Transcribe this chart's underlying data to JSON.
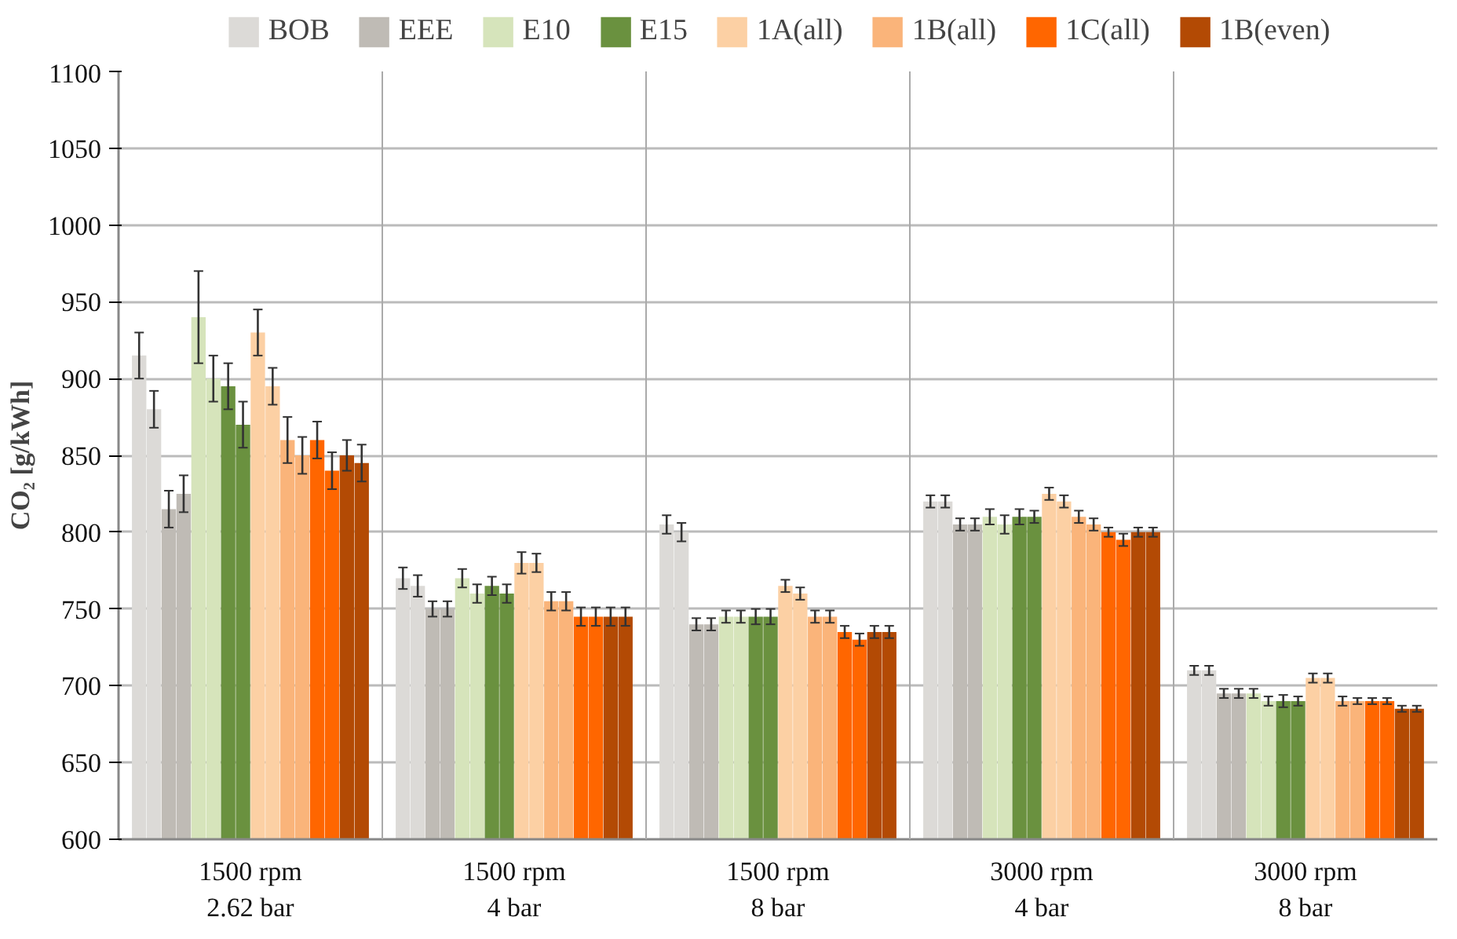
{
  "chart_data": {
    "type": "bar",
    "ylabel": "CO₂ [g/kWh]",
    "categories": [
      "1500 rpm\n2.62 bar",
      "1500 rpm\n4 bar",
      "1500 rpm\n8 bar",
      "3000 rpm\n4 bar",
      "3000 rpm\n8 bar"
    ],
    "ylim": [
      600,
      1100
    ],
    "yticks": [
      600,
      650,
      700,
      750,
      800,
      850,
      900,
      950,
      1000,
      1050,
      1100
    ],
    "grid": "y",
    "legend": "top",
    "series": [
      {
        "name": "BOB",
        "color": "#dcdad7",
        "values": [
          915,
          770,
          805,
          820,
          710
        ],
        "errors": [
          15,
          7,
          6,
          4,
          3
        ]
      },
      {
        "color": "#dcdad7",
        "values": [
          880,
          765,
          800,
          820,
          710
        ],
        "errors": [
          12,
          7,
          6,
          4,
          3
        ]
      },
      {
        "name": "EEE",
        "color": "#bfbbb5",
        "values": [
          815,
          750,
          740,
          805,
          695
        ],
        "errors": [
          12,
          5,
          4,
          4,
          3
        ]
      },
      {
        "color": "#bfbbb5",
        "values": [
          825,
          750,
          740,
          805,
          695
        ],
        "errors": [
          12,
          5,
          4,
          4,
          3
        ]
      },
      {
        "name": "E10",
        "color": "#d6e4bb",
        "values": [
          940,
          770,
          745,
          810,
          695
        ],
        "errors": [
          30,
          6,
          4,
          5,
          3
        ]
      },
      {
        "color": "#d6e4bb",
        "values": [
          900,
          760,
          745,
          805,
          690
        ],
        "errors": [
          15,
          6,
          4,
          6,
          3
        ]
      },
      {
        "name": "E15",
        "color": "#6a913f",
        "values": [
          895,
          765,
          745,
          810,
          690
        ],
        "errors": [
          15,
          6,
          5,
          5,
          4
        ]
      },
      {
        "color": "#6a913f",
        "values": [
          870,
          760,
          745,
          810,
          690
        ],
        "errors": [
          15,
          6,
          5,
          4,
          3
        ]
      },
      {
        "name": "1A(all)",
        "color": "#fcd0a4",
        "values": [
          930,
          780,
          765,
          825,
          705
        ],
        "errors": [
          15,
          7,
          4,
          4,
          3
        ]
      },
      {
        "color": "#fcd0a4",
        "values": [
          895,
          780,
          760,
          820,
          705
        ],
        "errors": [
          12,
          6,
          4,
          4,
          3
        ]
      },
      {
        "name": "1B(all)",
        "color": "#fab47a",
        "values": [
          860,
          755,
          745,
          810,
          690
        ],
        "errors": [
          15,
          6,
          4,
          4,
          3
        ]
      },
      {
        "color": "#fab47a",
        "values": [
          850,
          755,
          745,
          805,
          690
        ],
        "errors": [
          12,
          6,
          4,
          4,
          2
        ]
      },
      {
        "name": "1C(all)",
        "color": "#ff6600",
        "values": [
          860,
          745,
          735,
          800,
          690
        ],
        "errors": [
          12,
          6,
          4,
          3,
          2
        ]
      },
      {
        "color": "#ff6600",
        "values": [
          840,
          745,
          730,
          795,
          690
        ],
        "errors": [
          12,
          6,
          4,
          4,
          2
        ]
      },
      {
        "name": "1B(even)",
        "color": "#b34a04",
        "values": [
          850,
          745,
          735,
          800,
          685
        ],
        "errors": [
          10,
          6,
          4,
          3,
          2
        ]
      },
      {
        "color": "#b34a04",
        "values": [
          845,
          745,
          735,
          800,
          685
        ],
        "errors": [
          12,
          6,
          4,
          3,
          2
        ]
      }
    ]
  }
}
